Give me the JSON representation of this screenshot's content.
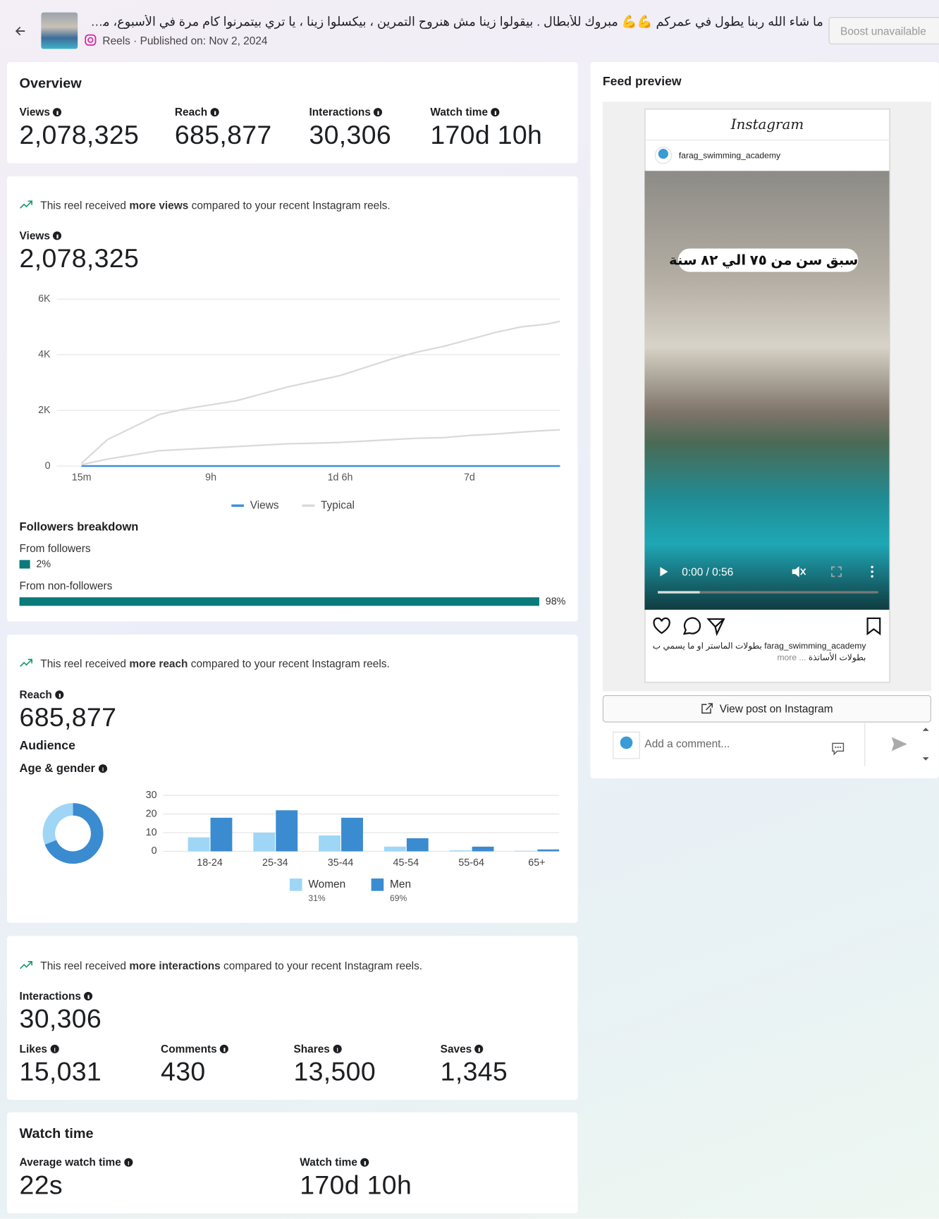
{
  "header": {
    "title": "ما شاء الله ربنا يطول في عمركم 💪💪 مبروك للأبطال . بيقولوا زينا مش هنروح التمرين ، بيكسلوا زينا ، يا تري بيتمرنوا كام مرة في الأسبوع، مرة بتبهرنا ...",
    "type": "Reels",
    "published": "· Published on: Nov 2, 2024",
    "boost": "Boost unavailable"
  },
  "overview": {
    "title": "Overview",
    "metrics": [
      {
        "label": "Views",
        "value": "2,078,325"
      },
      {
        "label": "Reach",
        "value": "685,877"
      },
      {
        "label": "Interactions",
        "value": "30,306"
      },
      {
        "label": "Watch time",
        "value": "170d 10h"
      }
    ]
  },
  "views_section": {
    "note_pre": "This reel received ",
    "note_bold": "more views",
    "note_post": " compared to your recent Instagram reels.",
    "label": "Views",
    "value": "2,078,325"
  },
  "reach_section": {
    "note_pre": "This reel received ",
    "note_bold": "more reach",
    "note_post": " compared to your recent Instagram reels.",
    "label": "Reach",
    "value": "685,877",
    "audience": "Audience",
    "age_gender": "Age & gender"
  },
  "interactions_section": {
    "note_pre": "This reel received ",
    "note_bold": "more interactions",
    "note_post": " compared to your recent Instagram reels.",
    "label": "Interactions",
    "value": "30,306",
    "metrics": [
      {
        "label": "Likes",
        "value": "15,031"
      },
      {
        "label": "Comments",
        "value": "430"
      },
      {
        "label": "Shares",
        "value": "13,500"
      },
      {
        "label": "Saves",
        "value": "1,345"
      }
    ]
  },
  "watch_section": {
    "title": "Watch time",
    "metrics": [
      {
        "label": "Average watch time",
        "value": "22s"
      },
      {
        "label": "Watch time",
        "value": "170d 10h"
      }
    ]
  },
  "feed_preview": {
    "title": "Feed preview",
    "brand": "Instagram",
    "account": "farag_swimming_academy",
    "overlay": "سبق سن من ٧٥ الي ٨٢ سنة",
    "time": "0:00 / 0:56",
    "caption_user": "farag_swimming_academy",
    "caption": "بطولات الماستر او ما يسمي ب بطولات الأساتذة",
    "more": "... more",
    "view_post": "View post on Instagram",
    "comment_placeholder": "Add a comment..."
  },
  "chart_data": [
    {
      "type": "line",
      "x": [
        0,
        0.2,
        0.4,
        0.6,
        0.8,
        1.0,
        1.2,
        1.4,
        1.6,
        1.8,
        2.0,
        2.2,
        2.4,
        2.6,
        2.8,
        3.0,
        3.2,
        3.4,
        3.6,
        3.7
      ],
      "xlim": [
        0,
        3.7
      ],
      "xticks": [
        {
          "value": 0,
          "label": "15m"
        },
        {
          "value": 1,
          "label": "9h"
        },
        {
          "value": 2,
          "label": "1d 6h"
        },
        {
          "value": 3,
          "label": "7d"
        }
      ],
      "ylim": [
        0,
        6000
      ],
      "yticks": [
        0,
        {
          "value": 2000,
          "label": "2K"
        },
        {
          "value": 4000,
          "label": "4K"
        },
        {
          "value": 6000,
          "label": "6K"
        }
      ],
      "grid": true,
      "series": [
        {
          "name": "Views",
          "color": "#3b8fd4",
          "values": [
            0,
            0,
            0,
            0,
            0,
            0,
            0,
            0,
            0,
            0,
            0,
            0,
            0,
            0,
            0,
            0,
            0,
            0,
            0,
            0
          ]
        },
        {
          "name": "Typical",
          "color": "#d9d9d9",
          "high": [
            100,
            950,
            1400,
            1850,
            2050,
            2200,
            2350,
            2600,
            2850,
            3050,
            3250,
            3550,
            3850,
            4100,
            4300,
            4550,
            4800,
            5000,
            5100,
            5200
          ],
          "low": [
            50,
            250,
            400,
            550,
            600,
            650,
            700,
            750,
            800,
            820,
            850,
            900,
            950,
            1000,
            1020,
            1100,
            1150,
            1220,
            1280,
            1300
          ]
        }
      ]
    },
    {
      "type": "hbar",
      "title": "Followers breakdown",
      "categories": [
        "From followers",
        "From non-followers"
      ],
      "values": [
        2,
        98
      ],
      "value_labels": [
        "2%",
        "98%"
      ],
      "xlim": [
        0,
        100
      ],
      "color": "#0b7a7a"
    },
    {
      "type": "bar",
      "categories": [
        "18-24",
        "25-34",
        "35-44",
        "45-54",
        "55-64",
        "65+"
      ],
      "ylim": [
        0,
        30
      ],
      "yticks": [
        0,
        10,
        20,
        30
      ],
      "grid": true,
      "series": [
        {
          "name": "Women",
          "color": "#9fd6f5",
          "values": [
            7.5,
            10,
            8.5,
            2.5,
            0.5,
            0.3
          ]
        },
        {
          "name": "Men",
          "color": "#3b8bd0",
          "values": [
            18,
            22,
            18,
            7,
            2.5,
            1
          ]
        }
      ]
    },
    {
      "type": "pie",
      "donut": true,
      "values": [
        31,
        69
      ],
      "value_labels": [
        "31%",
        "69%"
      ],
      "colors": [
        "#9fd6f5",
        "#3b8bd0"
      ]
    }
  ]
}
